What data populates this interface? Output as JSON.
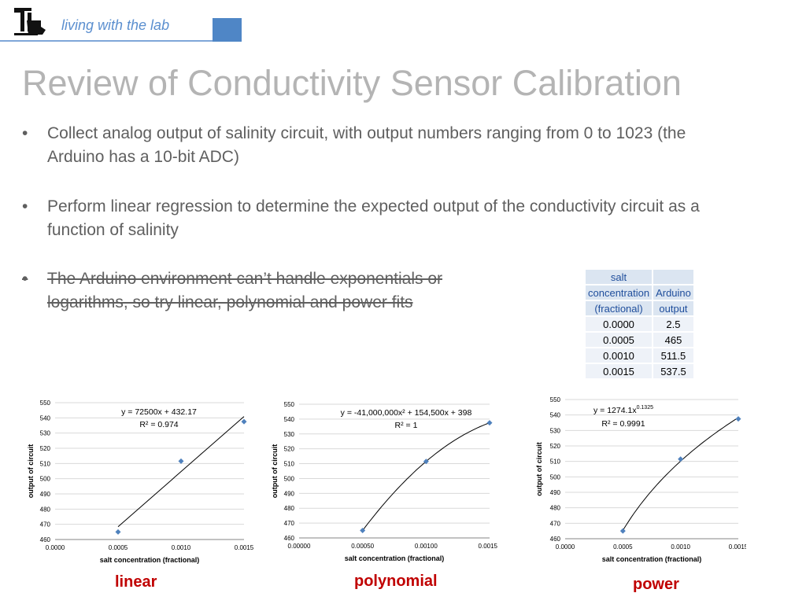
{
  "header": {
    "text": "living with the lab",
    "logo": "louisiana-tech-logo"
  },
  "title": "Review of Conductivity Sensor Calibration",
  "bullets": [
    {
      "text": "Collect analog output of salinity circuit, with output numbers ranging from 0 to 1023 (the Arduino has a 10-bit ADC)",
      "struck": false
    },
    {
      "text": "Perform linear regression to determine the expected output of the conductivity circuit as a function of salinity",
      "struck": false
    },
    {
      "text": "The Arduino environment can’t  handle exponentials or logarithms, so try linear, polynomial and power fits",
      "struck": true
    }
  ],
  "table": {
    "headers": [
      [
        "salt",
        ""
      ],
      [
        "concentration",
        "Arduino"
      ],
      [
        "(fractional)",
        "output"
      ]
    ],
    "rows": [
      [
        "0.0000",
        "2.5"
      ],
      [
        "0.0005",
        "465"
      ],
      [
        "0.0010",
        "511.5"
      ],
      [
        "0.0015",
        "537.5"
      ]
    ]
  },
  "chart_data": [
    {
      "type": "scatter",
      "points": {
        "x": [
          0.0005,
          0.001,
          0.0015
        ],
        "y": [
          465,
          511.5,
          537.5
        ]
      },
      "fit": "linear",
      "equation": "y = 72500x + 432.17",
      "r2": "R² = 0.974",
      "xlabel": "salt concentration (fractional)",
      "ylabel": "output of circuit",
      "xlim": [
        0,
        0.0015
      ],
      "ylim": [
        460,
        550
      ],
      "xticks": [
        "0.0000",
        "0.0005",
        "0.0010",
        "0.0015"
      ],
      "yticks": [
        "460",
        "470",
        "480",
        "490",
        "500",
        "510",
        "520",
        "530",
        "540",
        "550"
      ],
      "caption": "linear"
    },
    {
      "type": "scatter",
      "points": {
        "x": [
          0.0005,
          0.001,
          0.0015
        ],
        "y": [
          465,
          511.5,
          537.5
        ]
      },
      "fit": "polynomial",
      "equation": "y = -41,000,000x² + 154,500x + 398",
      "r2": "R² = 1",
      "xlabel": "salt concentration (fractional)",
      "ylabel": "output of circuit",
      "xlim": [
        0,
        0.0015
      ],
      "ylim": [
        460,
        550
      ],
      "xticks": [
        "0.00000",
        "0.00050",
        "0.00100",
        "0.00150"
      ],
      "yticks": [
        "460",
        "470",
        "480",
        "490",
        "500",
        "510",
        "520",
        "530",
        "540",
        "550"
      ],
      "caption": "polynomial"
    },
    {
      "type": "scatter",
      "points": {
        "x": [
          0.0005,
          0.001,
          0.0015
        ],
        "y": [
          465,
          511.5,
          537.5
        ]
      },
      "fit": "power",
      "equation": "y = 1274.1x0.1325",
      "r2": "R² = 0.9991",
      "xlabel": "salt concentration (fractional)",
      "ylabel": "output of circuit",
      "xlim": [
        0,
        0.0015
      ],
      "ylim": [
        460,
        550
      ],
      "xticks": [
        "0.0000",
        "0.0005",
        "0.0010",
        "0.0015"
      ],
      "yticks": [
        "460",
        "470",
        "480",
        "490",
        "500",
        "510",
        "520",
        "530",
        "540",
        "550"
      ],
      "caption": "power"
    }
  ],
  "colors": {
    "marker": "#4f81bd",
    "caption": "#c00000",
    "title": "#b4b4b4",
    "header": "#5b8fcf"
  }
}
